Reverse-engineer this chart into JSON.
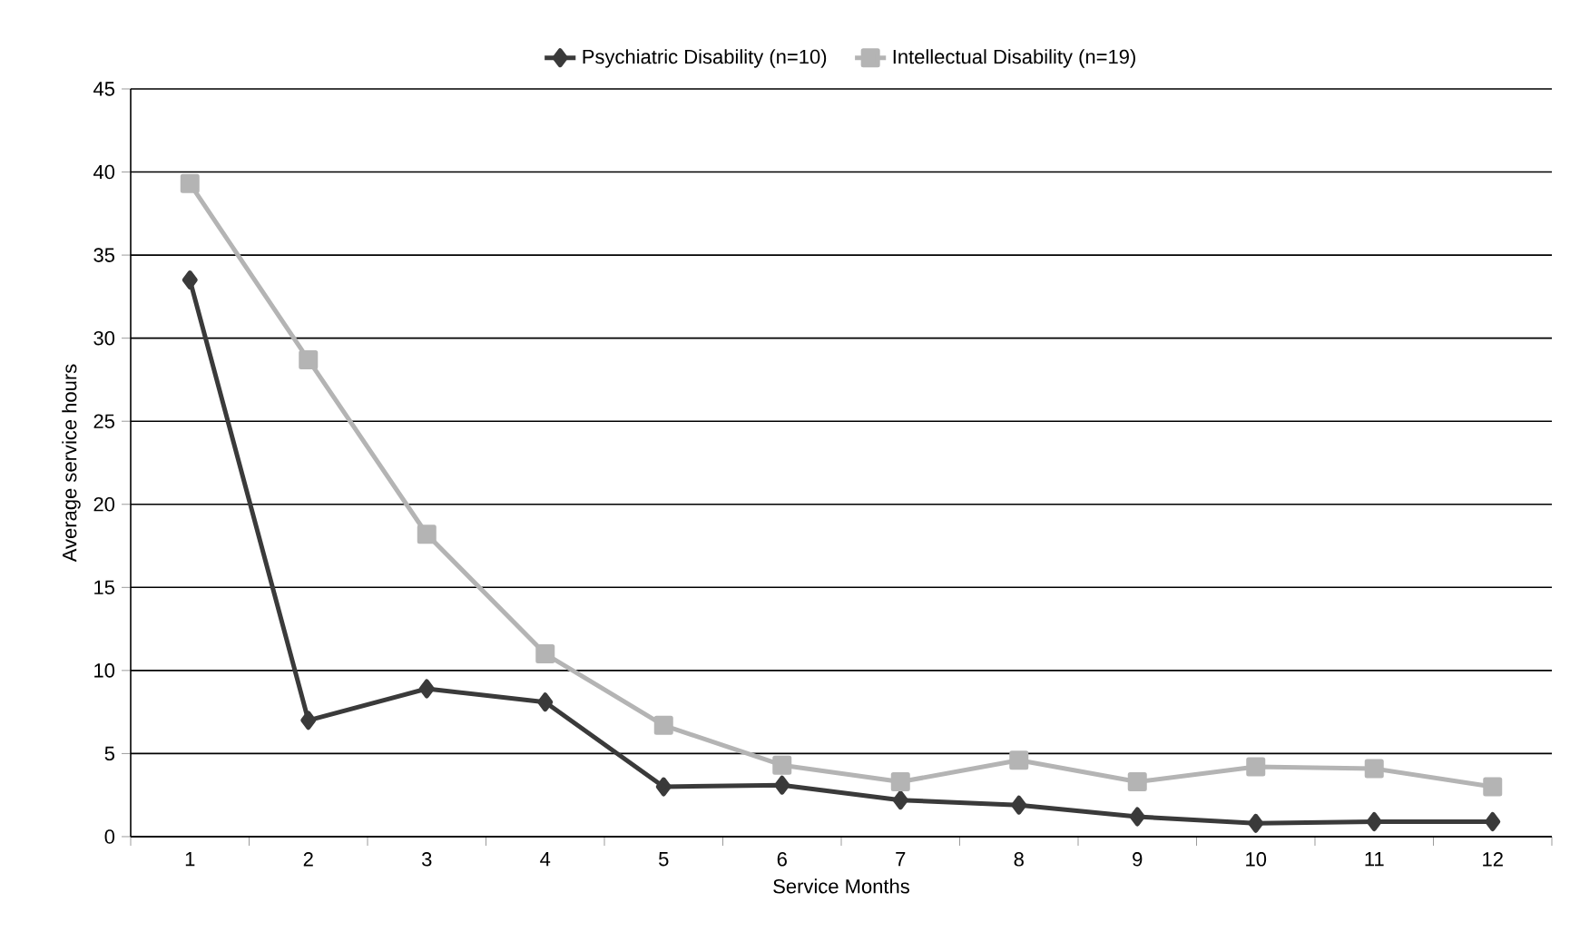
{
  "chart_data": {
    "type": "line",
    "xlabel": "Service Months",
    "ylabel": "Average service hours",
    "categories": [
      "1",
      "2",
      "3",
      "4",
      "5",
      "6",
      "7",
      "8",
      "9",
      "10",
      "11",
      "12"
    ],
    "series": [
      {
        "name": "Psychiatric Disability (n=10)",
        "color": "#3a3a3a",
        "marker": "diamond",
        "values": [
          33.5,
          7.0,
          8.9,
          8.1,
          3.0,
          3.1,
          2.2,
          1.9,
          1.2,
          0.8,
          0.9,
          0.9
        ]
      },
      {
        "name": "Intellectual Disability (n=19)",
        "color": "#b4b4b4",
        "marker": "square",
        "values": [
          39.3,
          28.7,
          18.2,
          11.0,
          6.7,
          4.3,
          3.3,
          4.6,
          3.3,
          4.2,
          4.1,
          3.0
        ]
      }
    ],
    "ylim": [
      0,
      45
    ],
    "yticks": [
      0,
      5,
      10,
      15,
      20,
      25,
      30,
      35,
      40,
      45
    ],
    "grid": "y",
    "legend": "top",
    "line_style": "solid"
  }
}
